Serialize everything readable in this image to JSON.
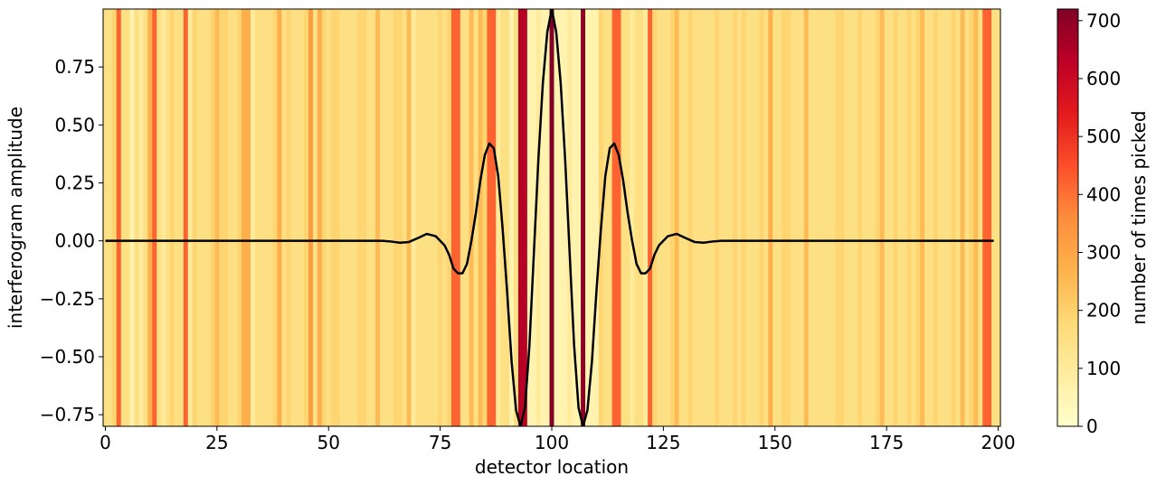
{
  "chart_data": {
    "type": "heatmap",
    "title": "",
    "xlabel": "detector location",
    "ylabel": "interferogram amplitude",
    "xlim": [
      -0.5,
      200.5
    ],
    "ylim": [
      -0.8,
      1.0
    ],
    "x_ticks": [
      0,
      25,
      50,
      75,
      100,
      125,
      150,
      175,
      200
    ],
    "y_ticks": [
      -0.75,
      -0.5,
      -0.25,
      0.0,
      0.25,
      0.5,
      0.75
    ],
    "colorbar": {
      "label": "number of times picked",
      "range": [
        0,
        720
      ],
      "ticks": [
        0,
        100,
        200,
        300,
        400,
        500,
        600,
        700
      ],
      "colormap": "YlOrRd",
      "stops": [
        "#ffffcc",
        "#ffeda0",
        "#fed976",
        "#feb24c",
        "#fd8d3c",
        "#fc4e2a",
        "#e31a1c",
        "#bd0026",
        "#800026"
      ]
    },
    "heatmap_values": [
      150,
      150,
      190,
      420,
      150,
      150,
      60,
      150,
      100,
      150,
      280,
      420,
      150,
      100,
      150,
      190,
      150,
      150,
      420,
      100,
      190,
      150,
      150,
      150,
      190,
      250,
      190,
      190,
      150,
      150,
      190,
      280,
      280,
      100,
      150,
      150,
      150,
      150,
      190,
      280,
      150,
      190,
      150,
      150,
      150,
      190,
      320,
      150,
      280,
      190,
      150,
      190,
      190,
      150,
      150,
      150,
      150,
      190,
      190,
      150,
      150,
      250,
      150,
      150,
      150,
      190,
      190,
      150,
      250,
      100,
      150,
      150,
      150,
      150,
      150,
      190,
      150,
      190,
      420,
      420,
      150,
      150,
      250,
      150,
      250,
      190,
      420,
      420,
      100,
      150,
      150,
      60,
      150,
      640,
      640,
      60,
      60,
      100,
      60,
      60,
      720,
      60,
      60,
      60,
      100,
      60,
      60,
      700,
      60,
      60,
      60,
      190,
      150,
      150,
      420,
      420,
      150,
      150,
      100,
      150,
      150,
      100,
      420,
      190,
      150,
      150,
      150,
      190,
      250,
      150,
      150,
      190,
      150,
      150,
      150,
      150,
      150,
      190,
      150,
      150,
      150,
      190,
      150,
      190,
      150,
      150,
      150,
      190,
      150,
      280,
      150,
      150,
      190,
      190,
      150,
      150,
      150,
      250,
      150,
      150,
      150,
      150,
      150,
      150,
      190,
      190,
      150,
      150,
      150,
      190,
      150,
      150,
      150,
      190,
      250,
      150,
      150,
      190,
      150,
      150,
      190,
      150,
      190,
      250,
      150,
      150,
      190,
      150,
      150,
      150,
      190,
      150,
      250,
      150,
      190,
      250,
      150,
      420,
      420,
      150,
      150
    ],
    "series": [
      {
        "x": [
          60,
          62,
          64,
          66,
          68,
          70,
          72,
          74,
          76,
          77,
          78,
          79,
          80,
          81,
          82,
          83,
          84,
          85,
          86,
          87,
          88,
          89,
          90,
          91,
          92,
          93,
          94,
          95,
          96,
          97,
          98,
          99,
          100,
          101,
          102,
          103,
          104,
          105,
          106,
          107,
          108,
          109,
          110,
          111,
          112,
          113,
          114,
          115,
          116,
          117,
          118,
          119,
          120,
          121,
          122,
          123,
          124,
          126,
          128,
          130,
          132,
          134,
          136,
          138,
          140
        ],
        "y": [
          0.0,
          0.0,
          -0.003,
          -0.008,
          -0.005,
          0.012,
          0.03,
          0.02,
          -0.02,
          -0.06,
          -0.12,
          -0.14,
          -0.14,
          -0.1,
          0.0,
          0.12,
          0.26,
          0.37,
          0.42,
          0.4,
          0.28,
          0.05,
          -0.22,
          -0.52,
          -0.73,
          -0.8,
          -0.72,
          -0.45,
          -0.05,
          0.35,
          0.68,
          0.9,
          1.0,
          0.9,
          0.68,
          0.35,
          -0.05,
          -0.45,
          -0.72,
          -0.8,
          -0.73,
          -0.52,
          -0.22,
          0.05,
          0.28,
          0.4,
          0.42,
          0.37,
          0.26,
          0.12,
          0.0,
          -0.1,
          -0.14,
          -0.14,
          -0.12,
          -0.06,
          -0.02,
          0.02,
          0.03,
          0.012,
          -0.005,
          -0.008,
          -0.003,
          0.0,
          0.0
        ],
        "line_start": 0,
        "line_end": 199,
        "color": "#000000"
      }
    ]
  }
}
